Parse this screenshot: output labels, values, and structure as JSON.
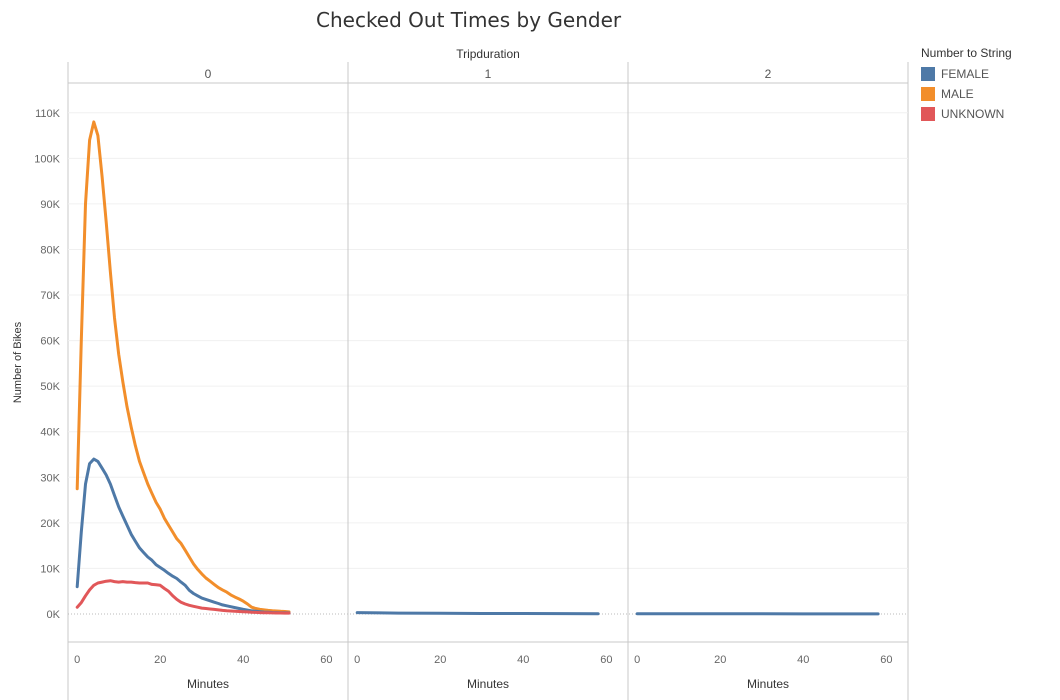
{
  "title": "Checked Out Times by Gender",
  "colors": {
    "FEMALE": "#4e79a7",
    "MALE": "#f28e2b",
    "UNKNOWN": "#e15759"
  },
  "legend": {
    "title": "Number to String",
    "items": [
      {
        "label": "FEMALE",
        "color": "#4e79a7"
      },
      {
        "label": "MALE",
        "color": "#f28e2b"
      },
      {
        "label": "UNKNOWN",
        "color": "#e15759"
      }
    ]
  },
  "chart_data": {
    "type": "line",
    "column_header": "Tripduration",
    "ylabel": "Number of Bikes",
    "xlabel": "Minutes",
    "ylim": [
      0,
      115000
    ],
    "yticks": [
      0,
      10000,
      20000,
      30000,
      40000,
      50000,
      60000,
      70000,
      80000,
      90000,
      100000,
      110000
    ],
    "ytick_labels": [
      "0K",
      "10K",
      "20K",
      "30K",
      "40K",
      "50K",
      "60K",
      "70K",
      "80K",
      "90K",
      "100K",
      "110K"
    ],
    "xlim": [
      -1,
      64
    ],
    "xticks": [
      0,
      20,
      40,
      60
    ],
    "xtick_labels": [
      "0",
      "20",
      "40",
      "60"
    ],
    "grid": true,
    "legend_position": "right",
    "panels": [
      {
        "label": "0",
        "series": [
          {
            "name": "MALE",
            "points": [
              [
                0,
                27500
              ],
              [
                1,
                60000
              ],
              [
                2,
                90000
              ],
              [
                3,
                104000
              ],
              [
                4,
                108000
              ],
              [
                5,
                105000
              ],
              [
                6,
                96000
              ],
              [
                7,
                86000
              ],
              [
                8,
                75000
              ],
              [
                9,
                65000
              ],
              [
                10,
                57000
              ],
              [
                11,
                51000
              ],
              [
                12,
                45500
              ],
              [
                13,
                41000
              ],
              [
                14,
                37000
              ],
              [
                15,
                33500
              ],
              [
                16,
                31000
              ],
              [
                17,
                28500
              ],
              [
                18,
                26500
              ],
              [
                19,
                24500
              ],
              [
                20,
                23000
              ],
              [
                21,
                21000
              ],
              [
                22,
                19500
              ],
              [
                23,
                18000
              ],
              [
                24,
                16500
              ],
              [
                25,
                15500
              ],
              [
                26,
                14000
              ],
              [
                27,
                12500
              ],
              [
                28,
                11000
              ],
              [
                29,
                9800
              ],
              [
                30,
                8800
              ],
              [
                31,
                7900
              ],
              [
                32,
                7200
              ],
              [
                33,
                6500
              ],
              [
                34,
                5800
              ],
              [
                35,
                5300
              ],
              [
                36,
                4800
              ],
              [
                37,
                4200
              ],
              [
                38,
                3700
              ],
              [
                39,
                3300
              ],
              [
                40,
                2800
              ],
              [
                41,
                2200
              ],
              [
                42,
                1500
              ],
              [
                43,
                1200
              ],
              [
                44,
                1000
              ],
              [
                45,
                900
              ],
              [
                46,
                800
              ],
              [
                47,
                700
              ],
              [
                48,
                650
              ],
              [
                49,
                600
              ],
              [
                50,
                550
              ],
              [
                51,
                450
              ]
            ]
          },
          {
            "name": "FEMALE",
            "points": [
              [
                0,
                6000
              ],
              [
                1,
                18000
              ],
              [
                2,
                28500
              ],
              [
                3,
                33000
              ],
              [
                4,
                34000
              ],
              [
                5,
                33500
              ],
              [
                6,
                32000
              ],
              [
                7,
                30500
              ],
              [
                8,
                28500
              ],
              [
                9,
                26000
              ],
              [
                10,
                23500
              ],
              [
                11,
                21500
              ],
              [
                12,
                19500
              ],
              [
                13,
                17500
              ],
              [
                14,
                16000
              ],
              [
                15,
                14500
              ],
              [
                16,
                13500
              ],
              [
                17,
                12500
              ],
              [
                18,
                11800
              ],
              [
                19,
                10800
              ],
              [
                20,
                10200
              ],
              [
                21,
                9600
              ],
              [
                22,
                8900
              ],
              [
                23,
                8300
              ],
              [
                24,
                7800
              ],
              [
                25,
                7000
              ],
              [
                26,
                6300
              ],
              [
                27,
                5200
              ],
              [
                28,
                4500
              ],
              [
                29,
                4000
              ],
              [
                30,
                3500
              ],
              [
                31,
                3200
              ],
              [
                32,
                2900
              ],
              [
                33,
                2600
              ],
              [
                34,
                2300
              ],
              [
                35,
                2000
              ],
              [
                36,
                1800
              ],
              [
                37,
                1600
              ],
              [
                38,
                1400
              ],
              [
                39,
                1200
              ],
              [
                40,
                1000
              ],
              [
                41,
                850
              ],
              [
                42,
                700
              ],
              [
                43,
                600
              ],
              [
                44,
                500
              ],
              [
                45,
                420
              ],
              [
                46,
                380
              ],
              [
                47,
                340
              ],
              [
                48,
                300
              ],
              [
                49,
                280
              ],
              [
                50,
                260
              ],
              [
                51,
                250
              ]
            ]
          },
          {
            "name": "UNKNOWN",
            "points": [
              [
                0,
                1500
              ],
              [
                1,
                2500
              ],
              [
                2,
                4000
              ],
              [
                3,
                5300
              ],
              [
                4,
                6300
              ],
              [
                5,
                6800
              ],
              [
                6,
                7000
              ],
              [
                7,
                7200
              ],
              [
                8,
                7300
              ],
              [
                9,
                7100
              ],
              [
                10,
                7000
              ],
              [
                11,
                7100
              ],
              [
                12,
                7000
              ],
              [
                13,
                7000
              ],
              [
                14,
                6900
              ],
              [
                15,
                6800
              ],
              [
                16,
                6800
              ],
              [
                17,
                6800
              ],
              [
                18,
                6500
              ],
              [
                19,
                6400
              ],
              [
                20,
                6300
              ],
              [
                21,
                5600
              ],
              [
                22,
                5000
              ],
              [
                23,
                4000
              ],
              [
                24,
                3200
              ],
              [
                25,
                2600
              ],
              [
                26,
                2200
              ],
              [
                27,
                1900
              ],
              [
                28,
                1700
              ],
              [
                29,
                1500
              ],
              [
                30,
                1300
              ],
              [
                31,
                1200
              ],
              [
                32,
                1100
              ],
              [
                33,
                1000
              ],
              [
                34,
                900
              ],
              [
                35,
                800
              ],
              [
                36,
                700
              ],
              [
                37,
                650
              ],
              [
                38,
                600
              ],
              [
                39,
                550
              ],
              [
                40,
                500
              ],
              [
                41,
                450
              ],
              [
                42,
                400
              ],
              [
                43,
                350
              ],
              [
                44,
                300
              ],
              [
                45,
                280
              ],
              [
                46,
                260
              ],
              [
                47,
                240
              ],
              [
                48,
                220
              ],
              [
                49,
                210
              ],
              [
                50,
                200
              ],
              [
                51,
                200
              ]
            ]
          }
        ]
      },
      {
        "label": "1",
        "series": [
          {
            "name": "FEMALE",
            "points": [
              [
                0,
                300
              ],
              [
                10,
                200
              ],
              [
                20,
                150
              ],
              [
                30,
                120
              ],
              [
                40,
                100
              ],
              [
                50,
                80
              ],
              [
                58,
                60
              ]
            ]
          }
        ]
      },
      {
        "label": "2",
        "series": [
          {
            "name": "FEMALE",
            "points": [
              [
                0,
                60
              ],
              [
                10,
                50
              ],
              [
                20,
                40
              ],
              [
                30,
                40
              ],
              [
                40,
                30
              ],
              [
                50,
                30
              ],
              [
                58,
                20
              ]
            ]
          }
        ]
      }
    ]
  }
}
